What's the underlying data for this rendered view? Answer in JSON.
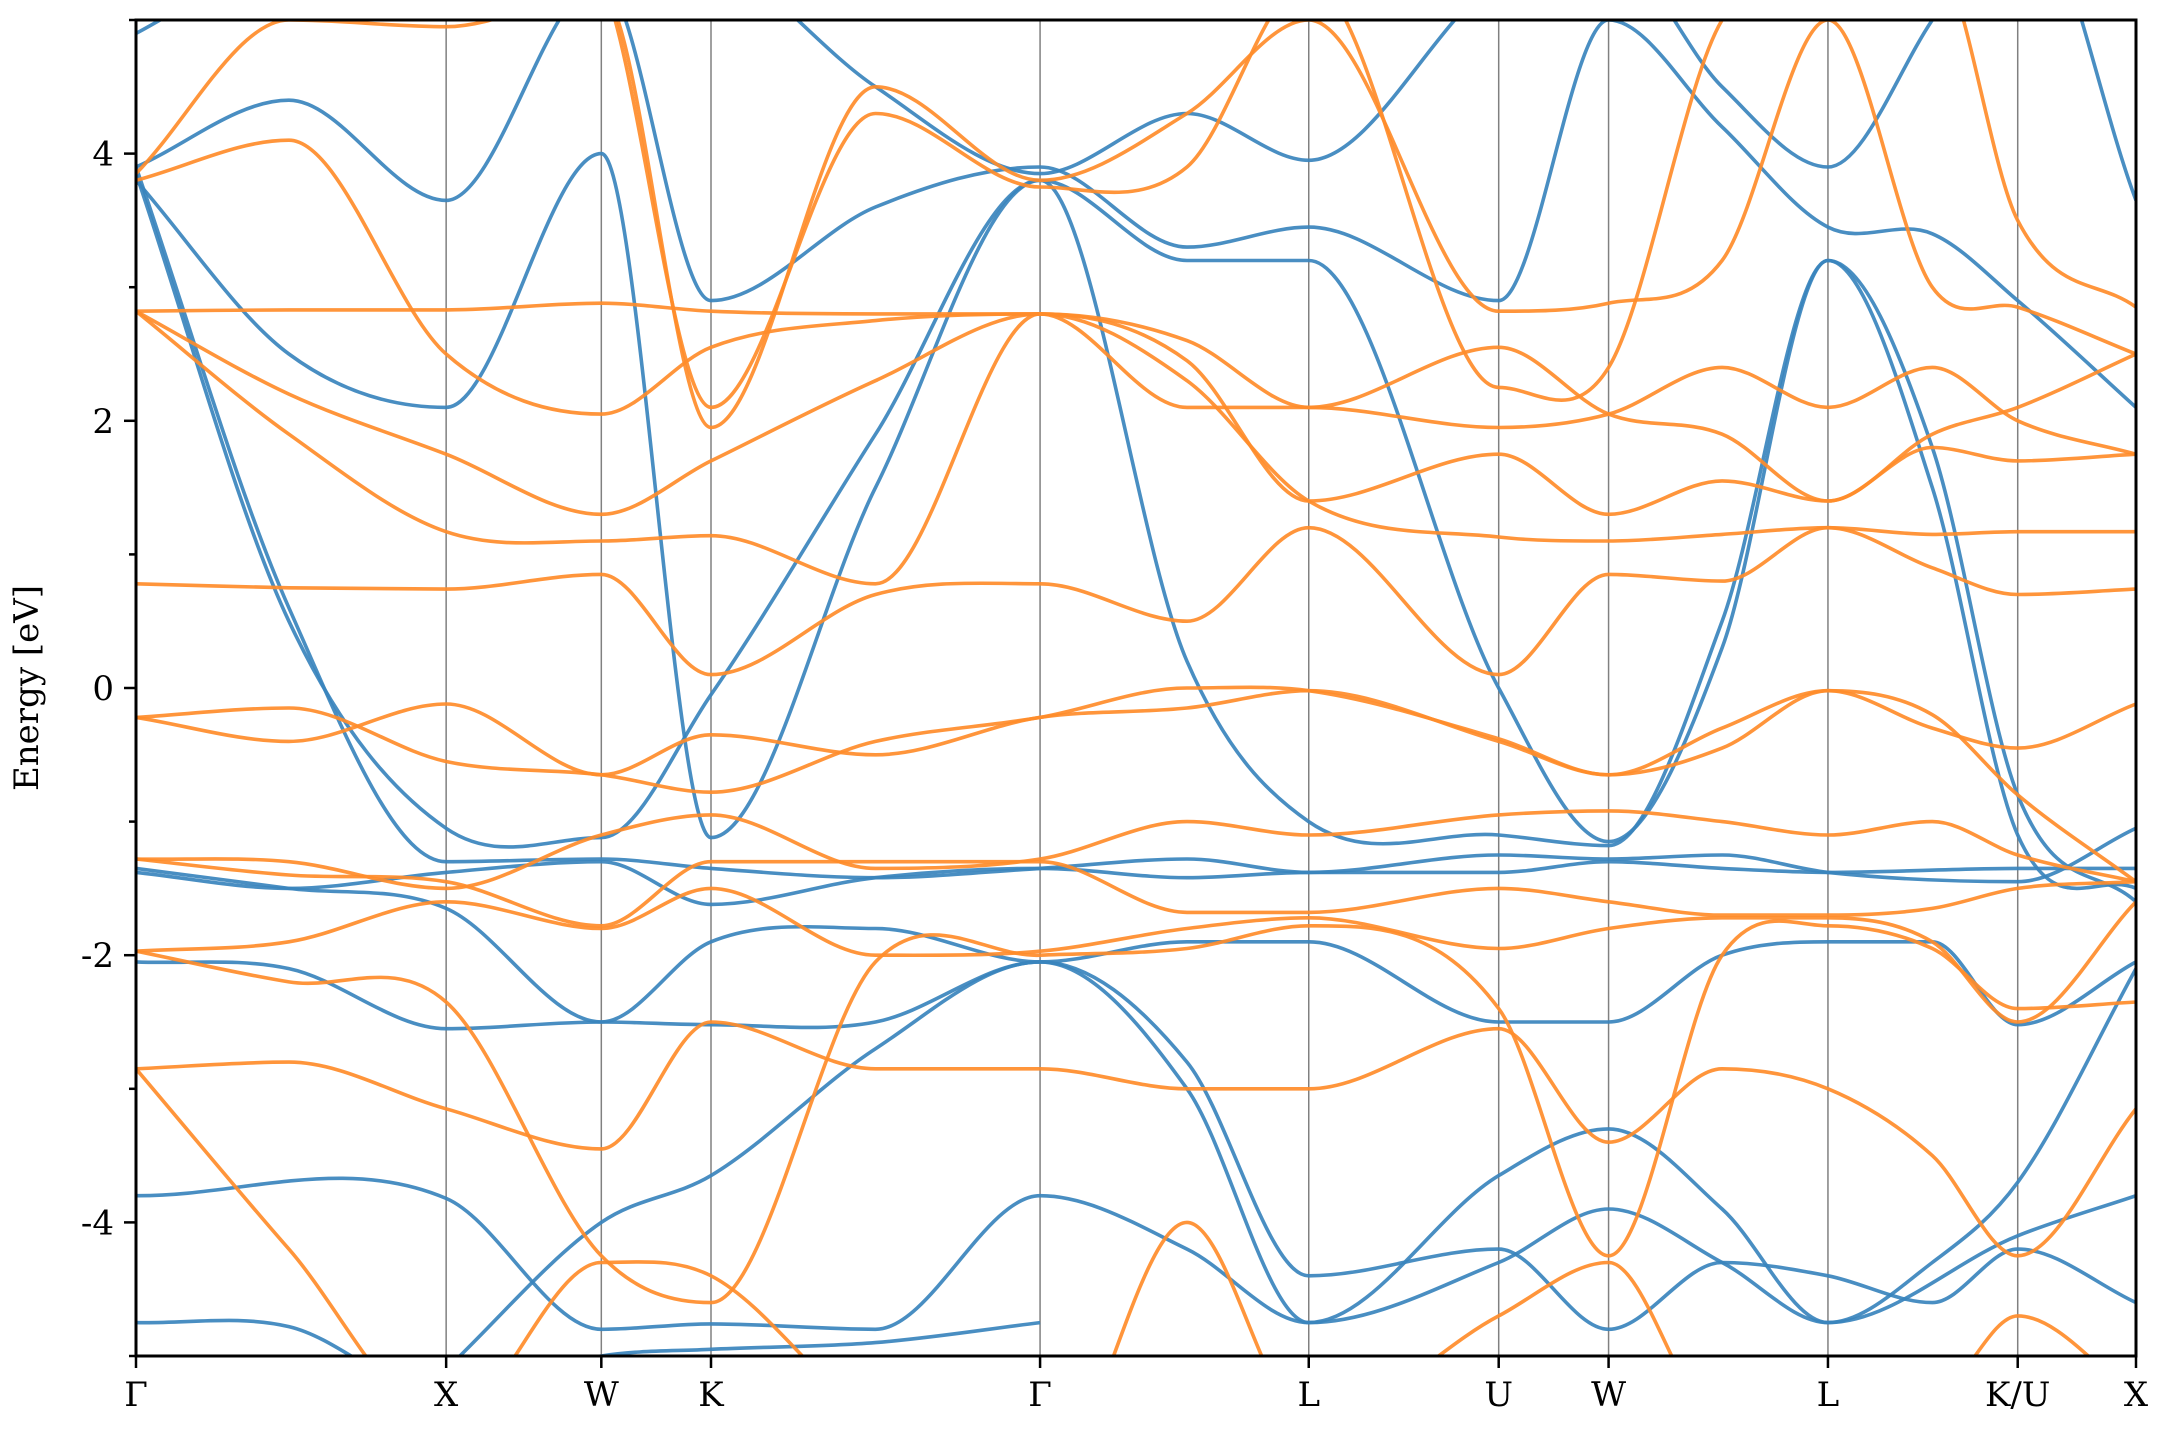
{
  "chart_data": {
    "type": "line",
    "title": "",
    "ylabel": "Energy [eV]",
    "xlabel": "",
    "ylim": [
      -5,
      5
    ],
    "xlim": [
      0,
      10.466
    ],
    "yticks": [
      -4,
      -2,
      0,
      2,
      4
    ],
    "y_minor_step": 1,
    "grid": false,
    "legend": "none",
    "kpath": {
      "labels": [
        "Γ",
        "X",
        "W",
        "K",
        "Γ",
        "L",
        "U",
        "W",
        "L",
        "K/U",
        "X"
      ],
      "positions": [
        0,
        1.623,
        2.435,
        3.009,
        4.731,
        6.137,
        7.131,
        7.706,
        8.854,
        9.847,
        10.466
      ]
    },
    "colors": {
      "series_a": "#3a84bd",
      "series_b": "#ff8c2a",
      "vline": "#808080"
    },
    "series": [
      {
        "color": "#3a84bd",
        "bands": [
          {
            "x": [
              0,
              0.8,
              1.623,
              2.435,
              3.009,
              3.87,
              4.731
            ],
            "y": [
              -4.75,
              -4.78,
              -5.3,
              -5.0,
              -4.95,
              -4.9,
              -4.75
            ]
          },
          {
            "x": [
              0,
              1.623,
              2.435,
              3.009,
              3.87,
              4.731,
              5.5,
              6.137,
              7.131,
              7.706,
              8.3,
              8.854,
              9.847,
              10.466
            ],
            "y": [
              -3.8,
              -3.82,
              -4.8,
              -4.76,
              -4.8,
              -3.8,
              -4.2,
              -4.75,
              -4.3,
              -3.9,
              -4.3,
              -4.75,
              -4.1,
              -3.8
            ]
          },
          {
            "x": [
              0,
              0.8,
              1.623,
              2.435,
              3.009,
              3.87,
              4.731,
              5.5,
              6.137,
              7.131,
              7.706,
              8.3,
              8.854,
              9.4,
              9.847,
              10.466
            ],
            "y": [
              -2.05,
              -2.1,
              -2.55,
              -2.5,
              -2.52,
              -2.5,
              -2.05,
              -2.8,
              -4.4,
              -4.2,
              -4.8,
              -4.3,
              -4.4,
              -4.6,
              -4.2,
              -4.6
            ]
          },
          {
            "x": [
              0,
              0.8,
              1.623,
              2.435,
              3.009,
              3.87,
              4.731,
              5.5,
              6.137,
              7.131,
              7.706,
              8.3,
              8.854,
              9.4,
              9.847,
              10.466
            ],
            "y": [
              -1.35,
              -1.5,
              -1.65,
              -2.5,
              -1.9,
              -1.8,
              -2.05,
              -1.9,
              -1.9,
              -2.5,
              -2.5,
              -2.0,
              -1.9,
              -1.9,
              -2.52,
              -2.05
            ]
          },
          {
            "x": [
              0,
              0.8,
              1.623,
              2.435,
              3.009,
              3.87,
              4.731,
              5.5,
              6.137,
              7.131,
              7.706,
              8.3,
              8.854,
              9.847,
              10.466
            ],
            "y": [
              -1.38,
              -1.5,
              -1.38,
              -1.3,
              -1.62,
              -1.42,
              -1.35,
              -1.42,
              -1.38,
              -1.38,
              -1.3,
              -1.35,
              -1.38,
              -1.35,
              -1.35
            ]
          },
          {
            "x": [
              0,
              0.8,
              1.623,
              2.435,
              3.009,
              3.87,
              4.731,
              5.5,
              6.137,
              7.131,
              7.706,
              8.3,
              8.854,
              9.847,
              10.466
            ],
            "y": [
              3.9,
              0.6,
              -1.3,
              -1.28,
              -1.35,
              -1.42,
              -1.35,
              -1.28,
              -1.38,
              -1.25,
              -1.28,
              -1.25,
              -1.38,
              -1.45,
              -1.05
            ]
          },
          {
            "x": [
              0,
              0.8,
              1.623,
              2.435,
              3.009,
              3.87,
              4.731,
              5.5,
              6.137,
              7.131,
              7.706,
              8.3,
              8.854,
              9.4,
              9.847,
              10.466
            ],
            "y": [
              3.85,
              0.5,
              -1.05,
              -1.12,
              -0.05,
              1.9,
              3.8,
              0.2,
              -1.0,
              -1.1,
              -1.18,
              0.5,
              3.2,
              1.8,
              -0.8,
              -1.6
            ]
          },
          {
            "x": [
              0,
              0.8,
              1.623,
              2.435,
              3.009,
              3.87,
              4.731,
              5.5,
              6.137,
              7.131,
              7.706,
              8.3,
              8.854,
              9.4,
              9.847,
              10.466
            ],
            "y": [
              3.8,
              2.5,
              2.1,
              4.0,
              -1.12,
              1.5,
              3.8,
              3.2,
              3.2,
              0.0,
              -1.15,
              0.3,
              3.2,
              1.5,
              -1.1,
              -1.5
            ]
          },
          {
            "x": [
              0,
              0.8,
              1.623,
              2.435,
              3.009,
              3.87,
              4.731,
              5.5,
              6.137,
              7.131,
              7.706,
              8.3,
              8.854,
              9.4,
              9.847,
              10.466
            ],
            "y": [
              3.9,
              4.4,
              3.65,
              5.3,
              2.9,
              3.6,
              3.9,
              3.3,
              3.45,
              2.9,
              5.0,
              4.2,
              3.45,
              3.4,
              2.9,
              2.1
            ]
          },
          {
            "x": [
              0,
              0.8,
              1.623,
              2.435,
              3.009,
              3.87,
              4.731,
              5.5,
              6.137,
              7.131,
              7.706,
              8.3,
              8.854,
              9.4,
              9.847,
              10.466
            ],
            "y": [
              4.9,
              5.5,
              5.6,
              5.6,
              5.5,
              4.5,
              3.85,
              4.3,
              3.95,
              5.3,
              5.5,
              4.5,
              3.9,
              5.0,
              6.0,
              3.65
            ]
          },
          {
            "x": [
              1.623,
              2.435,
              3.009,
              3.87,
              4.731,
              5.5,
              6.137,
              7.131,
              7.706,
              8.3,
              8.854,
              9.4,
              9.847,
              10.466
            ],
            "y": [
              -5.1,
              -4.0,
              -3.65,
              -2.7,
              -2.05,
              -3.0,
              -4.75,
              -3.65,
              -3.3,
              -3.9,
              -4.75,
              -4.3,
              -3.7,
              -2.1
            ]
          }
        ]
      },
      {
        "color": "#ff8c2a",
        "bands": [
          {
            "x": [
              0,
              0.8,
              1.623,
              2.435,
              3.009,
              3.87,
              4.731,
              5.5,
              6.137,
              7.131,
              7.706,
              8.3,
              8.854,
              9.4,
              9.847,
              10.466
            ],
            "y": [
              -2.85,
              -4.2,
              -5.5,
              -4.3,
              -4.4,
              -5.5,
              -6.0,
              -4.0,
              -5.5,
              -4.7,
              -4.3,
              -5.5,
              -5.2,
              -5.3,
              -4.7,
              -5.3
            ]
          },
          {
            "x": [
              0,
              0.8,
              1.623,
              2.435,
              3.009,
              3.87,
              4.731,
              5.5,
              6.137,
              7.131,
              7.706,
              8.3,
              8.854,
              9.4,
              9.847,
              10.466
            ],
            "y": [
              -2.85,
              -2.8,
              -3.15,
              -3.45,
              -2.5,
              -2.85,
              -2.85,
              -3.0,
              -3.0,
              -2.55,
              -3.4,
              -2.85,
              -3.0,
              -3.5,
              -4.25,
              -3.15
            ]
          },
          {
            "x": [
              0,
              0.8,
              1.623,
              2.435,
              3.009,
              3.87,
              4.731,
              5.5,
              6.137,
              7.131,
              7.706,
              8.3,
              8.854,
              9.4,
              9.847,
              10.466
            ],
            "y": [
              -1.97,
              -2.2,
              -2.35,
              -4.25,
              -4.6,
              -2.05,
              -2.0,
              -1.95,
              -1.78,
              -2.4,
              -4.25,
              -2.0,
              -1.78,
              -1.95,
              -2.4,
              -2.35
            ]
          },
          {
            "x": [
              0,
              0.8,
              1.623,
              2.435,
              3.009,
              3.87,
              4.731,
              5.5,
              6.137,
              7.131,
              7.706,
              8.3,
              8.854,
              9.4,
              9.847,
              10.466
            ],
            "y": [
              -1.97,
              -1.9,
              -1.6,
              -1.8,
              -1.5,
              -2.0,
              -1.97,
              -1.8,
              -1.72,
              -1.95,
              -1.8,
              -1.72,
              -1.72,
              -1.9,
              -2.5,
              -1.6
            ]
          },
          {
            "x": [
              0,
              0.8,
              1.623,
              2.435,
              3.009,
              3.87,
              4.731,
              5.5,
              6.137,
              7.131,
              7.706,
              8.3,
              8.854,
              9.4,
              9.847,
              10.466
            ],
            "y": [
              -1.28,
              -1.4,
              -1.45,
              -1.78,
              -1.3,
              -1.3,
              -1.3,
              -1.68,
              -1.68,
              -1.5,
              -1.6,
              -1.7,
              -1.7,
              -1.65,
              -1.5,
              -1.45
            ]
          },
          {
            "x": [
              0,
              0.8,
              1.623,
              2.435,
              3.009,
              3.87,
              4.731,
              5.5,
              6.137,
              7.131,
              7.706,
              8.3,
              8.854,
              9.4,
              9.847,
              10.466
            ],
            "y": [
              -1.28,
              -1.3,
              -1.5,
              -1.1,
              -0.95,
              -1.35,
              -1.28,
              -1.0,
              -1.1,
              -0.95,
              -0.92,
              -1.0,
              -1.1,
              -1.0,
              -1.25,
              -1.45
            ]
          },
          {
            "x": [
              0,
              0.8,
              1.623,
              2.435,
              3.009,
              3.87,
              4.731,
              5.5,
              6.137,
              7.131,
              7.706,
              8.3,
              8.854,
              9.4,
              9.847,
              10.466
            ],
            "y": [
              -0.22,
              -0.15,
              -0.55,
              -0.65,
              -0.78,
              -0.4,
              -0.22,
              0.0,
              -0.02,
              -0.38,
              -0.65,
              -0.3,
              -0.02,
              -0.3,
              -0.45,
              -0.12
            ]
          },
          {
            "x": [
              0,
              0.8,
              1.623,
              2.435,
              3.009,
              3.87,
              4.731,
              5.5,
              6.137,
              7.131,
              7.706,
              8.3,
              8.854,
              9.4,
              9.847,
              10.466
            ],
            "y": [
              -0.22,
              -0.4,
              -0.12,
              -0.65,
              -0.35,
              -0.5,
              -0.22,
              -0.15,
              -0.02,
              -0.4,
              -0.65,
              -0.45,
              -0.02,
              -0.2,
              -0.8,
              -1.45
            ]
          },
          {
            "x": [
              0,
              0.8,
              1.623,
              2.435,
              3.009,
              3.87,
              4.731,
              5.5,
              6.137,
              7.131,
              7.706,
              8.3,
              8.854,
              9.4,
              9.847,
              10.466
            ],
            "y": [
              0.78,
              0.75,
              0.74,
              0.85,
              0.1,
              0.7,
              0.78,
              0.5,
              1.2,
              0.1,
              0.85,
              0.8,
              1.2,
              0.9,
              0.7,
              0.74
            ]
          },
          {
            "x": [
              0,
              0.8,
              1.623,
              2.435,
              3.009,
              3.87,
              4.731,
              5.5,
              6.137,
              7.131,
              7.706,
              8.3,
              8.854,
              9.4,
              9.847,
              10.466
            ],
            "y": [
              2.82,
              1.9,
              1.17,
              1.1,
              1.14,
              0.78,
              2.8,
              2.3,
              1.4,
              1.13,
              1.1,
              1.15,
              1.2,
              1.15,
              1.17,
              1.17
            ]
          },
          {
            "x": [
              0,
              0.8,
              1.623,
              2.435,
              3.009,
              3.87,
              4.731,
              5.5,
              6.137,
              7.131,
              7.706,
              8.3,
              8.854,
              9.4,
              9.847,
              10.466
            ],
            "y": [
              2.82,
              2.83,
              2.83,
              2.88,
              2.82,
              2.8,
              2.8,
              2.45,
              1.4,
              1.75,
              1.3,
              1.55,
              1.4,
              1.8,
              1.7,
              1.75
            ]
          },
          {
            "x": [
              0,
              0.8,
              1.623,
              2.435,
              3.009,
              3.87,
              4.731,
              5.5,
              6.137,
              7.131,
              7.706,
              8.3,
              8.854,
              9.4,
              9.847,
              10.466
            ],
            "y": [
              2.82,
              2.2,
              1.75,
              1.3,
              1.7,
              2.3,
              2.8,
              2.1,
              2.1,
              1.95,
              2.05,
              2.4,
              2.1,
              2.4,
              2.0,
              1.75
            ]
          },
          {
            "x": [
              0,
              0.8,
              1.623,
              2.435,
              3.009,
              3.87,
              4.731,
              5.5,
              6.137,
              7.131,
              7.706,
              8.3,
              8.854,
              9.4,
              9.847,
              10.466
            ],
            "y": [
              3.8,
              4.1,
              2.5,
              2.05,
              2.55,
              2.75,
              2.8,
              2.6,
              2.1,
              2.55,
              2.05,
              1.9,
              1.4,
              1.9,
              2.1,
              2.5
            ]
          },
          {
            "x": [
              0,
              0.8,
              1.623,
              2.435,
              3.009,
              3.87,
              4.731,
              5.5,
              6.137,
              7.131,
              7.706,
              8.3,
              8.854,
              9.4,
              9.847,
              10.466
            ],
            "y": [
              3.85,
              5.0,
              4.95,
              5.2,
              1.95,
              4.5,
              3.8,
              4.3,
              5.0,
              2.82,
              2.88,
              3.2,
              5.0,
              3.0,
              2.85,
              2.5
            ]
          },
          {
            "x": [
              0,
              0.8,
              1.623,
              2.435,
              3.009,
              3.87,
              4.731,
              5.5,
              6.137,
              7.131,
              7.706,
              8.3,
              8.854,
              9.4,
              9.847,
              10.466
            ],
            "y": [
              5.2,
              5.5,
              5.5,
              5.3,
              2.1,
              4.3,
              3.75,
              3.9,
              5.3,
              2.25,
              2.4,
              5.0,
              5.2,
              5.5,
              3.5,
              2.85
            ]
          }
        ]
      }
    ]
  }
}
